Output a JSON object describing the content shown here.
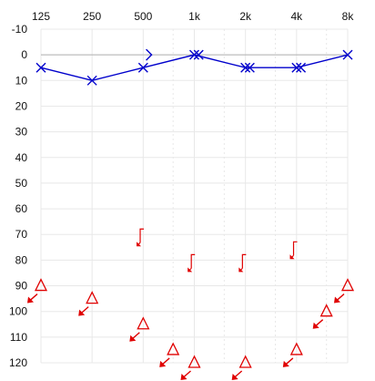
{
  "chart_data": {
    "type": "scatter",
    "title": "",
    "xlabel": "",
    "ylabel": "",
    "x_scale": "log",
    "x_ticks": [
      125,
      250,
      500,
      1000,
      2000,
      4000,
      8000
    ],
    "x_tick_labels": [
      "125",
      "250",
      "500",
      "1k",
      "2k",
      "4k",
      "8k"
    ],
    "x_intermediate_gridlines": [
      750,
      1500,
      3000,
      6000
    ],
    "ylim": [
      -10,
      120
    ],
    "y_inverted": true,
    "y_ticks": [
      -10,
      0,
      10,
      20,
      30,
      40,
      50,
      60,
      70,
      80,
      90,
      100,
      110,
      120
    ],
    "grid": true,
    "reference_line": {
      "y": 0,
      "color": "#b0b0b0"
    },
    "colors": {
      "air": "#0000cc",
      "masked": "#e00000",
      "grid": "#e8e8e8"
    },
    "series": [
      {
        "symbol": "x",
        "line": true,
        "color": "#0000cc",
        "points": [
          {
            "x": 125,
            "y": 5
          },
          {
            "x": 250,
            "y": 10
          },
          {
            "x": 500,
            "y": 5
          },
          {
            "x": 1000,
            "y": 0
          },
          {
            "x": 2000,
            "y": 5
          },
          {
            "x": 4000,
            "y": 5
          },
          {
            "x": 8000,
            "y": 0
          }
        ]
      },
      {
        "symbol": "x",
        "line": false,
        "color": "#0000cc",
        "points": [
          {
            "x": 1060,
            "y": 0
          },
          {
            "x": 2120,
            "y": 5
          },
          {
            "x": 4240,
            "y": 5
          }
        ]
      },
      {
        "symbol": "bone-right",
        "line": false,
        "color": "#0000cc",
        "points": [
          {
            "x": 540,
            "y": 0
          }
        ]
      },
      {
        "symbol": "bracket",
        "line": false,
        "color": "#e00000",
        "points": [
          {
            "x": 480,
            "y": 70
          },
          {
            "x": 960,
            "y": 80
          },
          {
            "x": 1920,
            "y": 80
          },
          {
            "x": 3840,
            "y": 75
          }
        ]
      },
      {
        "symbol": "triangle-arrow",
        "line": false,
        "color": "#e00000",
        "points": [
          {
            "x": 125,
            "y": 90
          },
          {
            "x": 250,
            "y": 95
          },
          {
            "x": 500,
            "y": 105
          },
          {
            "x": 750,
            "y": 115
          },
          {
            "x": 1000,
            "y": 120
          },
          {
            "x": 2000,
            "y": 120
          },
          {
            "x": 4000,
            "y": 115
          },
          {
            "x": 6000,
            "y": 100
          },
          {
            "x": 8000,
            "y": 90
          }
        ]
      }
    ]
  }
}
